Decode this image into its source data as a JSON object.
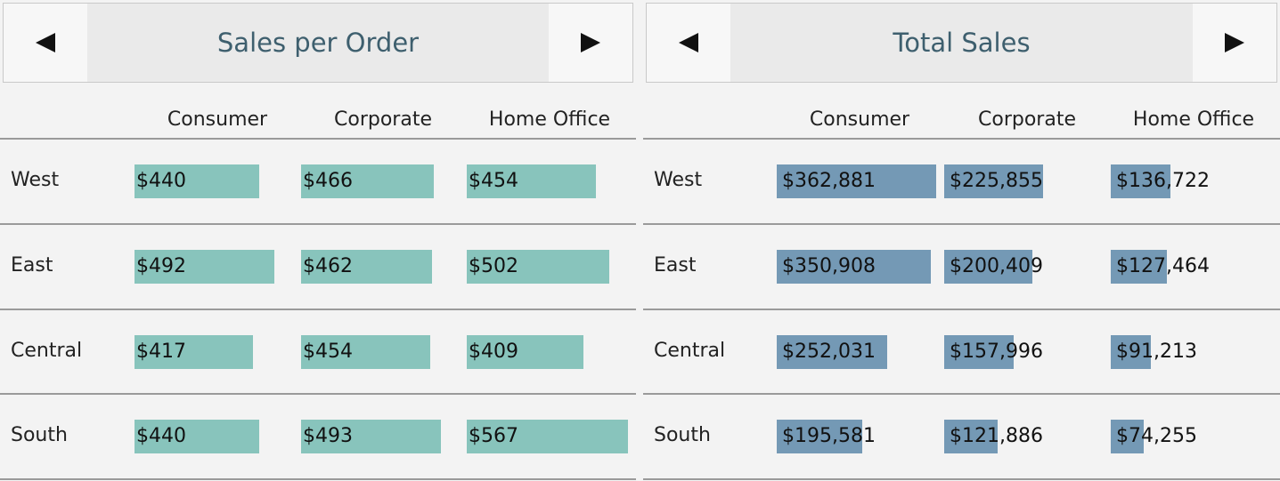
{
  "colors": {
    "left_bar": "#88c4bc",
    "right_bar": "#7499b5"
  },
  "panels": [
    {
      "id": "sales-per-order",
      "title": "Sales per Order",
      "nav": {
        "prev_icon": "triangle-left-icon",
        "next_icon": "triangle-right-icon"
      }
    },
    {
      "id": "total-sales",
      "title": "Total Sales",
      "nav": {
        "prev_icon": "triangle-left-icon",
        "next_icon": "triangle-right-icon"
      }
    }
  ],
  "chart_data": [
    {
      "type": "table",
      "title": "Sales per Order",
      "columns": [
        "Consumer",
        "Corporate",
        "Home Office"
      ],
      "rows": [
        "West",
        "East",
        "Central",
        "South"
      ],
      "values": [
        [
          440,
          466,
          454
        ],
        [
          492,
          462,
          502
        ],
        [
          417,
          454,
          409
        ],
        [
          440,
          493,
          567
        ]
      ],
      "labels": [
        [
          "$440",
          "$466",
          "$454"
        ],
        [
          "$492",
          "$462",
          "$502"
        ],
        [
          "$417",
          "$454",
          "$409"
        ],
        [
          "$440",
          "$493",
          "$567"
        ]
      ],
      "bar_max": 567
    },
    {
      "type": "table",
      "title": "Total Sales",
      "columns": [
        "Consumer",
        "Corporate",
        "Home Office"
      ],
      "rows": [
        "West",
        "East",
        "Central",
        "South"
      ],
      "values": [
        [
          362881,
          225855,
          136722
        ],
        [
          350908,
          200409,
          127464
        ],
        [
          252031,
          157996,
          91213
        ],
        [
          195581,
          121886,
          74255
        ]
      ],
      "labels": [
        [
          "$362,881",
          "$225,855",
          "$136,722"
        ],
        [
          "$350,908",
          "$200,409",
          "$127,464"
        ],
        [
          "$252,031",
          "$157,996",
          "$91,213"
        ],
        [
          "$195,581",
          "$121,886",
          "$74,255"
        ]
      ],
      "bar_max": 362881
    }
  ]
}
